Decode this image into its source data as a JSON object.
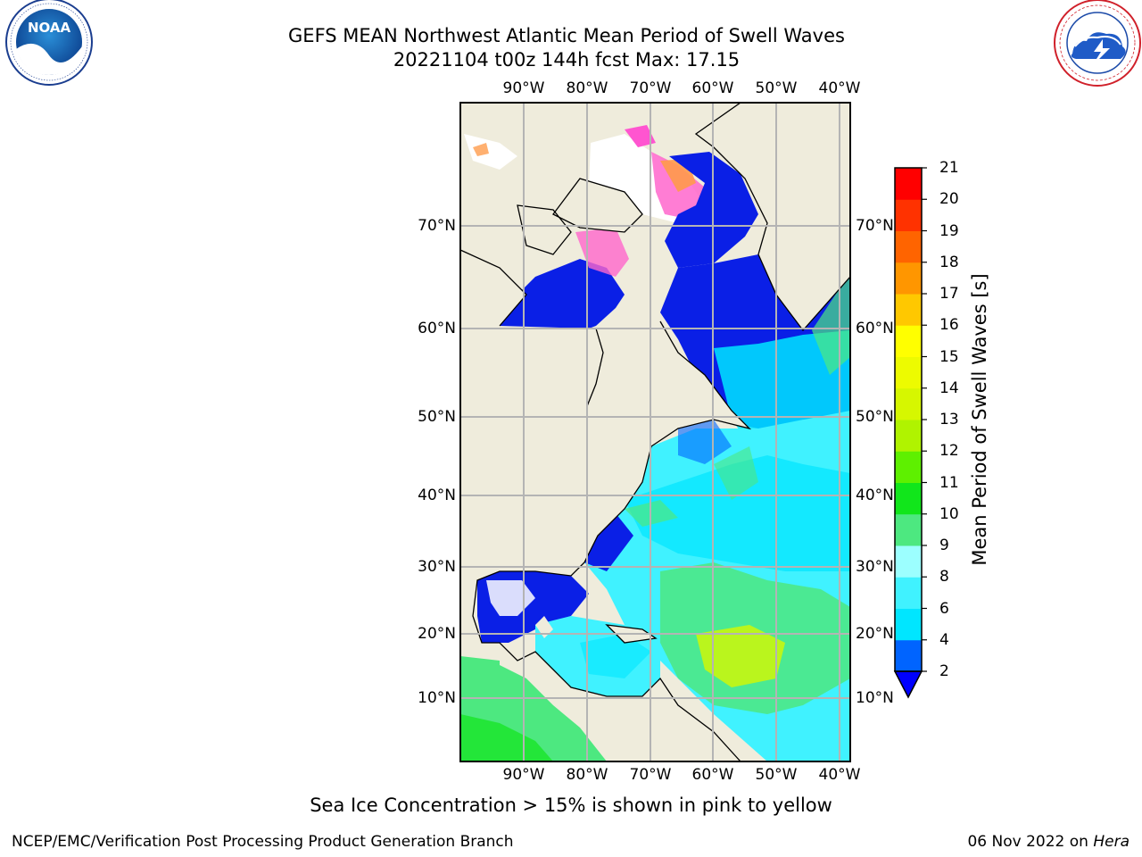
{
  "header": {
    "title_line1": "GEFS MEAN Northwest Atlantic Mean Period of Swell Waves",
    "title_line2": "20221104 t00z 144h fcst   Max: 17.15"
  },
  "logos": {
    "left": {
      "name": "NOAA",
      "label": "NOAA",
      "ring_text": "NATIONAL OCEANIC AND ATMOSPHERIC ADMINISTRATION · U.S. DEPARTMENT OF COMMERCE"
    },
    "right": {
      "name": "National Weather Service",
      "ring_text": "NATIONAL WEATHER SERVICE"
    }
  },
  "map": {
    "lon_ticks": [
      "90°W",
      "80°W",
      "70°W",
      "60°W",
      "50°W",
      "40°W"
    ],
    "lat_ticks": [
      "70°N",
      "60°N",
      "50°N",
      "40°N",
      "30°N",
      "20°N",
      "10°N"
    ],
    "colors": {
      "land": "#efecdc",
      "ice_free_white": "#ffffff",
      "grid": "#b4b4b4",
      "coast": "#000000"
    }
  },
  "colorbar": {
    "label": "Mean Period of Swell Waves [s]",
    "ticks": [
      "2",
      "4",
      "6",
      "8",
      "9",
      "10",
      "11",
      "12",
      "13",
      "14",
      "15",
      "16",
      "17",
      "18",
      "19",
      "20",
      "21"
    ],
    "colors": [
      "#0064ff",
      "#00e6ff",
      "#40f2ff",
      "#9cffff",
      "#4de880",
      "#11e61b",
      "#5ef000",
      "#b0f300",
      "#d6f700",
      "#edfb00",
      "#ffff00",
      "#ffc800",
      "#ff9600",
      "#ff6400",
      "#ff3200",
      "#ff0000"
    ],
    "underflow_color": "#0000ff"
  },
  "caption": "Sea Ice Concentration > 15% is shown in pink to yellow",
  "footer": {
    "left": "NCEP/EMC/Verification Post Processing Product Generation Branch",
    "date": "06 Nov 2022 on",
    "host": "Hera"
  }
}
